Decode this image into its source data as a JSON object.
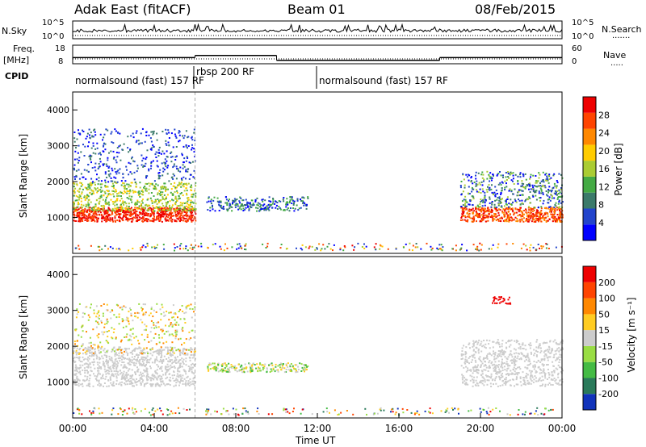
{
  "header": {
    "station": "Adak East (fitACF)",
    "beam": "Beam 01",
    "date": "08/Feb/2015"
  },
  "noise_panel": {
    "left_label": "N.Sky",
    "right_label": "N.Search",
    "right_legend_dots": "·······",
    "left_ticks": [
      "10^5",
      "10^0"
    ],
    "right_ticks": [
      "10^5",
      "10^0"
    ]
  },
  "freq_panel": {
    "left_label_line1": "Freq.",
    "left_label_line2": "[MHz]",
    "right_label": "Nave",
    "right_legend_dots": "·····",
    "left_ticks": [
      "18",
      "8"
    ],
    "right_ticks": [
      "60",
      "0"
    ]
  },
  "cpid": {
    "label": "CPID",
    "segments": [
      {
        "text": "normalsound (fast) 157 RF"
      },
      {
        "text": "rbsp 200 RF"
      },
      {
        "text": "normalsound (fast) 157 RF"
      }
    ]
  },
  "power_panel": {
    "ylabel": "Slant Range [km]",
    "yticks": [
      "4000",
      "3000",
      "2000",
      "1000"
    ],
    "colorbar_label": "Power [dB]",
    "colorbar_ticks": [
      "28",
      "24",
      "20",
      "16",
      "12",
      "8",
      "4"
    ],
    "colors": [
      "#0000ff",
      "#2244cc",
      "#3b7a6a",
      "#44aa44",
      "#aacc33",
      "#ffcc00",
      "#ff8800",
      "#ff4400",
      "#ee0000"
    ]
  },
  "velocity_panel": {
    "ylabel": "Slant Range [km]",
    "yticks": [
      "4000",
      "3000",
      "2000",
      "1000"
    ],
    "colorbar_label": "Velocity [m s⁻¹]",
    "colorbar_ticks": [
      "200",
      "100",
      "50",
      "15",
      "-15",
      "-50",
      "-100",
      "-200"
    ],
    "colors": [
      "#1133bb",
      "#2a7a5a",
      "#44bb44",
      "#99dd44",
      "#cccccc",
      "#ffcc22",
      "#ff8800",
      "#ff4400",
      "#ee0000"
    ]
  },
  "x_axis": {
    "ticks": [
      "00:00",
      "04:00",
      "08:00",
      "12:00",
      "16:00",
      "20:00",
      "00:00"
    ],
    "label": "Time UT"
  },
  "chart_data": {
    "type": "heatmap",
    "x_range_hours": [
      0,
      24
    ],
    "y_range_km": [
      0,
      4500
    ],
    "frequency_segments_mhz": [
      {
        "start": 0.0,
        "end": 6.0,
        "freq": 12.5
      },
      {
        "start": 6.0,
        "end": 10.0,
        "freq": 14.0
      },
      {
        "start": 10.0,
        "end": 18.0,
        "freq": 10.5
      },
      {
        "start": 18.0,
        "end": 24.0,
        "freq": 12.5
      }
    ],
    "cpid_segments": [
      {
        "start": 0.0,
        "end": 6.0,
        "name": "normalsound (fast) 157 RF"
      },
      {
        "start": 6.0,
        "end": 12.0,
        "name": "rbsp 200 RF"
      },
      {
        "start": 12.0,
        "end": 24.0,
        "name": "normalsound (fast) 157 RF"
      }
    ]
  }
}
